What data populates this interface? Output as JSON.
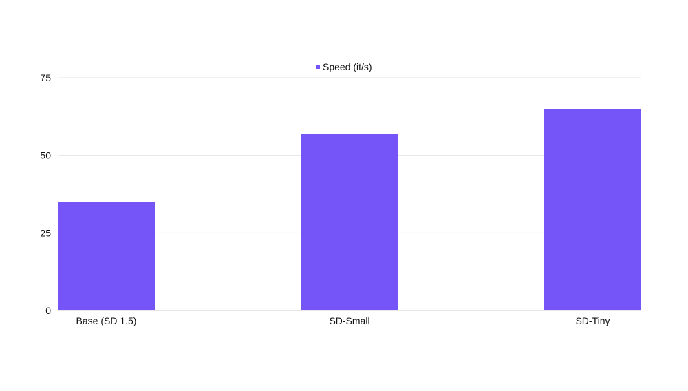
{
  "chart_data": {
    "type": "bar",
    "title": "",
    "xlabel": "",
    "ylabel": "",
    "categories": [
      "Base (SD 1.5)",
      "SD-Small",
      "SD-Tiny"
    ],
    "series": [
      {
        "name": "Speed (it/s)",
        "values": [
          35,
          57,
          65
        ],
        "color": "#7655F8"
      }
    ],
    "ylim": [
      0,
      75
    ],
    "yticks": [
      0,
      25,
      50,
      75
    ],
    "grid": true,
    "legend": "top-center"
  }
}
